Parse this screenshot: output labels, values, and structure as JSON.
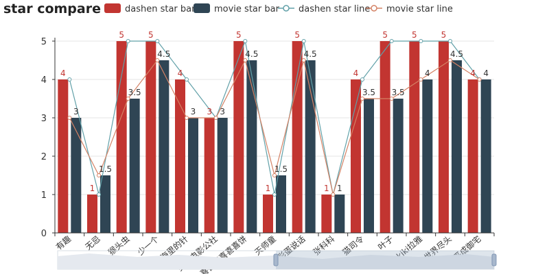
{
  "chart_data": {
    "type": "bar",
    "title": "star compare",
    "categories": [
      "有趣",
      "无忌",
      "猴头虫",
      "少一个",
      "大海里的针",
      "美好电影公社",
      "喜喜喜喜喜喜饼",
      "天师童",
      "彩蛋说话",
      "张科科",
      "猫司令",
      "叶子",
      "kiki拉雅",
      "世界尽头",
      "平成御宅"
    ],
    "series": [
      {
        "name": "dashen star bar",
        "kind": "bar",
        "color": "#c23531",
        "values": [
          4,
          1,
          5,
          5,
          4,
          3,
          5,
          1,
          5,
          1,
          4,
          5,
          5,
          5,
          4
        ]
      },
      {
        "name": "movie star bar",
        "kind": "bar",
        "color": "#2f4554",
        "values": [
          3,
          1.5,
          3.5,
          4.5,
          3,
          3,
          4.5,
          1.5,
          4.5,
          1,
          3.5,
          3.5,
          4,
          4.5,
          4
        ]
      },
      {
        "name": "dashen star line",
        "kind": "line",
        "color": "#61a0a8",
        "values": [
          4,
          1,
          5,
          5,
          4,
          3,
          5,
          1,
          5,
          1,
          4,
          5,
          5,
          5,
          4
        ]
      },
      {
        "name": "movie star line",
        "kind": "line",
        "color": "#d48265",
        "values": [
          3,
          1.5,
          3.5,
          4.5,
          3,
          3,
          4.5,
          1.5,
          4.5,
          1,
          3.5,
          3.5,
          4,
          4.5,
          4
        ]
      }
    ],
    "yticks": [
      "0",
      "1",
      "2",
      "3",
      "4",
      "5"
    ],
    "ylim": [
      0,
      5
    ],
    "grid": true,
    "legend_position": "top"
  }
}
